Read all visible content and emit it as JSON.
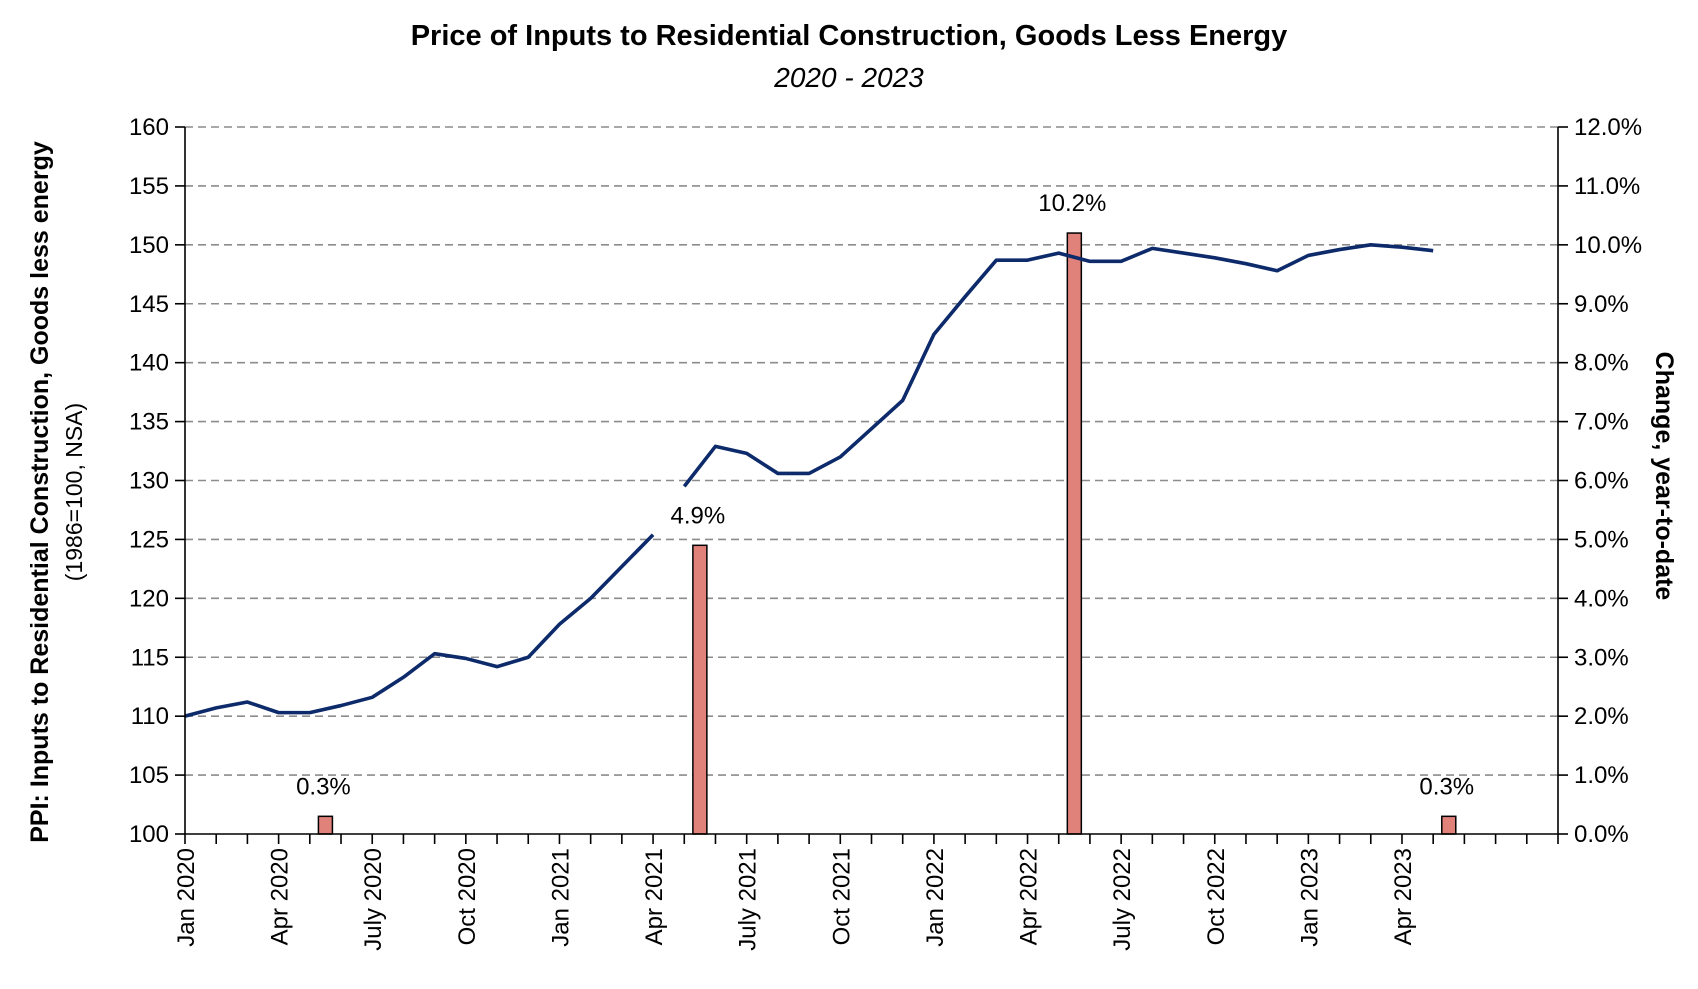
{
  "chart_data": {
    "type": "line",
    "title": "Price of Inputs to Residential Construction, Goods Less Energy",
    "subtitle": "2020 - 2023",
    "ylabel": "PPI: Inputs to Residential Construction, Goods less energy",
    "ylabel_sub": "(1986=100, NSA)",
    "y2label": "Change, year-to-date",
    "ylim": [
      100,
      160
    ],
    "y_ticks": [
      "100",
      "105",
      "110",
      "115",
      "120",
      "125",
      "130",
      "135",
      "140",
      "145",
      "150",
      "155",
      "160"
    ],
    "y2lim": [
      0,
      12
    ],
    "y2_ticks": [
      "0.0%",
      "1.0%",
      "2.0%",
      "3.0%",
      "4.0%",
      "5.0%",
      "6.0%",
      "7.0%",
      "8.0%",
      "9.0%",
      "10.0%",
      "11.0%",
      "12.0%"
    ],
    "x_tick_labels": [
      "Jan 2020",
      "Apr 2020",
      "July 2020",
      "Oct 2020",
      "Jan 2021",
      "Apr 2021",
      "July 2021",
      "Oct 2021",
      "Jan 2022",
      "Apr 2022",
      "July 2022",
      "Oct 2022",
      "Jan 2023",
      "Apr 2023"
    ],
    "grid": true,
    "line_color": "#0d2a6b",
    "bar_color": "#e0827a",
    "series": [
      {
        "type": "line",
        "axis": "left",
        "x": [
          "Jan 2020",
          "Feb 2020",
          "Mar 2020",
          "Apr 2020",
          "May 2020",
          "Jun 2020",
          "Jul 2020",
          "Aug 2020",
          "Sep 2020",
          "Oct 2020",
          "Nov 2020",
          "Dec 2020",
          "Jan 2021",
          "Feb 2021",
          "Mar 2021",
          "Apr 2021",
          "May 2021",
          "Jun 2021",
          "Jul 2021",
          "Aug 2021",
          "Sep 2021",
          "Oct 2021",
          "Nov 2021",
          "Dec 2021",
          "Jan 2022",
          "Feb 2022",
          "Mar 2022",
          "Apr 2022",
          "May 2022",
          "Jun 2022",
          "Jul 2022",
          "Aug 2022",
          "Sep 2022",
          "Oct 2022",
          "Nov 2022",
          "Dec 2022",
          "Jan 2023",
          "Feb 2023",
          "Mar 2023",
          "Apr 2023",
          "May 2023"
        ],
        "values": [
          110.0,
          110.7,
          111.2,
          110.3,
          110.3,
          110.9,
          111.6,
          113.3,
          115.3,
          114.9,
          114.2,
          115.0,
          117.8,
          120.0,
          122.7,
          125.4,
          129.5,
          132.9,
          132.3,
          130.6,
          130.6,
          132.0,
          134.4,
          136.8,
          142.4,
          145.6,
          148.7,
          148.7,
          149.3,
          148.6,
          148.6,
          149.7,
          149.3,
          148.9,
          148.4,
          147.8,
          149.1,
          149.6,
          150.0,
          149.8,
          149.5
        ]
      },
      {
        "type": "bar",
        "axis": "right",
        "x": [
          "May 2020",
          "May 2021",
          "May 2022",
          "May 2023"
        ],
        "values": [
          0.3,
          4.9,
          10.2,
          0.3
        ],
        "labels": [
          "0.3%",
          "4.9%",
          "10.2%",
          "0.3%"
        ]
      }
    ]
  }
}
